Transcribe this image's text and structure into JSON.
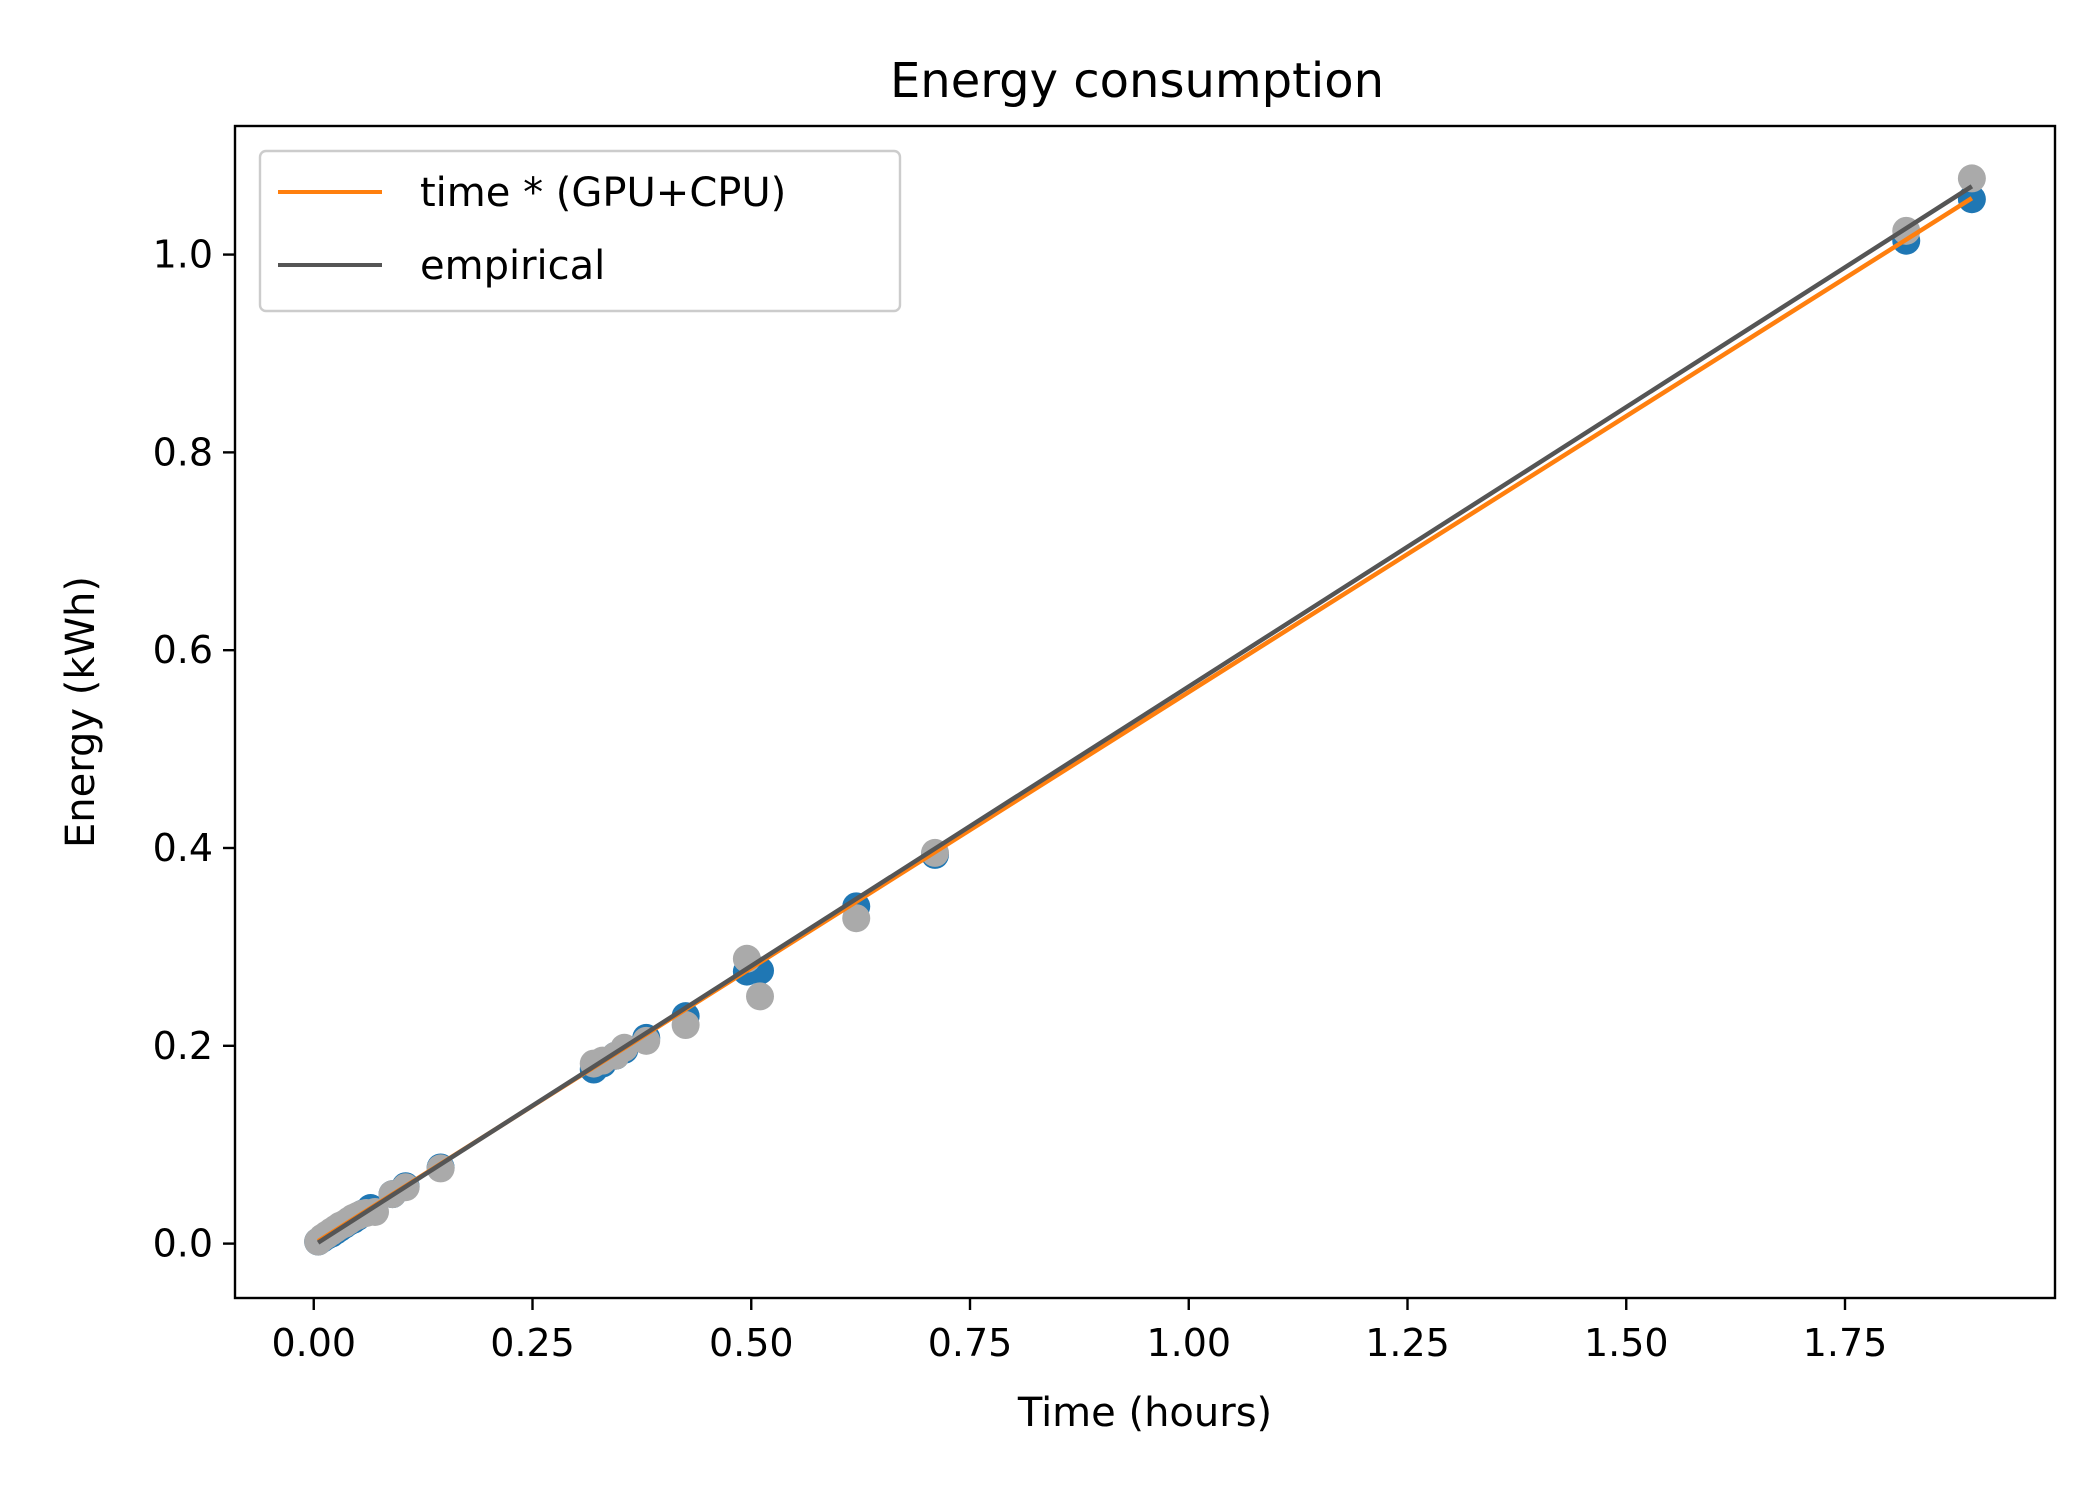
{
  "chart_data": {
    "type": "scatter",
    "title": "Energy consumption",
    "xlabel": "Time (hours)",
    "ylabel": "Energy (kWh)",
    "xlim": [
      -0.09,
      1.99
    ],
    "ylim": [
      -0.055,
      1.13
    ],
    "xticks": [
      0.0,
      0.25,
      0.5,
      0.75,
      1.0,
      1.25,
      1.5,
      1.75
    ],
    "xtick_labels": [
      "0.00",
      "0.25",
      "0.50",
      "0.75",
      "1.00",
      "1.25",
      "1.50",
      "1.75"
    ],
    "yticks": [
      0.0,
      0.2,
      0.4,
      0.6,
      0.8,
      1.0
    ],
    "ytick_labels": [
      "0.0",
      "0.2",
      "0.4",
      "0.6",
      "0.8",
      "1.0"
    ],
    "grid": false,
    "legend_position": "top-left",
    "series": [
      {
        "name": "time * (GPU+CPU)",
        "kind": "line",
        "color": "#ff7f0e",
        "x": [
          0.005,
          1.895
        ],
        "y": [
          0.0025,
          1.057
        ]
      },
      {
        "name": "empirical",
        "kind": "line",
        "color": "#555555",
        "x": [
          0.005,
          1.895
        ],
        "y": [
          0.001,
          1.069
        ]
      },
      {
        "kind": "scatter",
        "color": "#1f77b4",
        "x": [
          0.005,
          0.01,
          0.015,
          0.02,
          0.025,
          0.03,
          0.035,
          0.04,
          0.045,
          0.05,
          0.055,
          0.06,
          0.065,
          0.09,
          0.105,
          0.145,
          0.32,
          0.33,
          0.345,
          0.355,
          0.38,
          0.425,
          0.495,
          0.51,
          0.62,
          0.71,
          1.82,
          1.895
        ],
        "y": [
          0.002,
          0.005,
          0.008,
          0.01,
          0.013,
          0.016,
          0.019,
          0.022,
          0.024,
          0.027,
          0.03,
          0.032,
          0.036,
          0.05,
          0.058,
          0.077,
          0.176,
          0.182,
          0.19,
          0.196,
          0.208,
          0.23,
          0.275,
          0.276,
          0.341,
          0.393,
          1.014,
          1.056
        ]
      },
      {
        "kind": "scatter",
        "color": "#aaaaaa",
        "x": [
          0.005,
          0.01,
          0.015,
          0.02,
          0.025,
          0.03,
          0.035,
          0.04,
          0.045,
          0.05,
          0.055,
          0.06,
          0.07,
          0.09,
          0.105,
          0.145,
          0.32,
          0.33,
          0.345,
          0.355,
          0.38,
          0.425,
          0.495,
          0.51,
          0.62,
          0.71,
          1.82,
          1.895
        ],
        "y": [
          0.002,
          0.006,
          0.009,
          0.012,
          0.015,
          0.018,
          0.02,
          0.023,
          0.026,
          0.028,
          0.03,
          0.031,
          0.032,
          0.05,
          0.057,
          0.076,
          0.182,
          0.185,
          0.19,
          0.198,
          0.205,
          0.221,
          0.288,
          0.25,
          0.329,
          0.395,
          1.024,
          1.077
        ]
      }
    ]
  }
}
